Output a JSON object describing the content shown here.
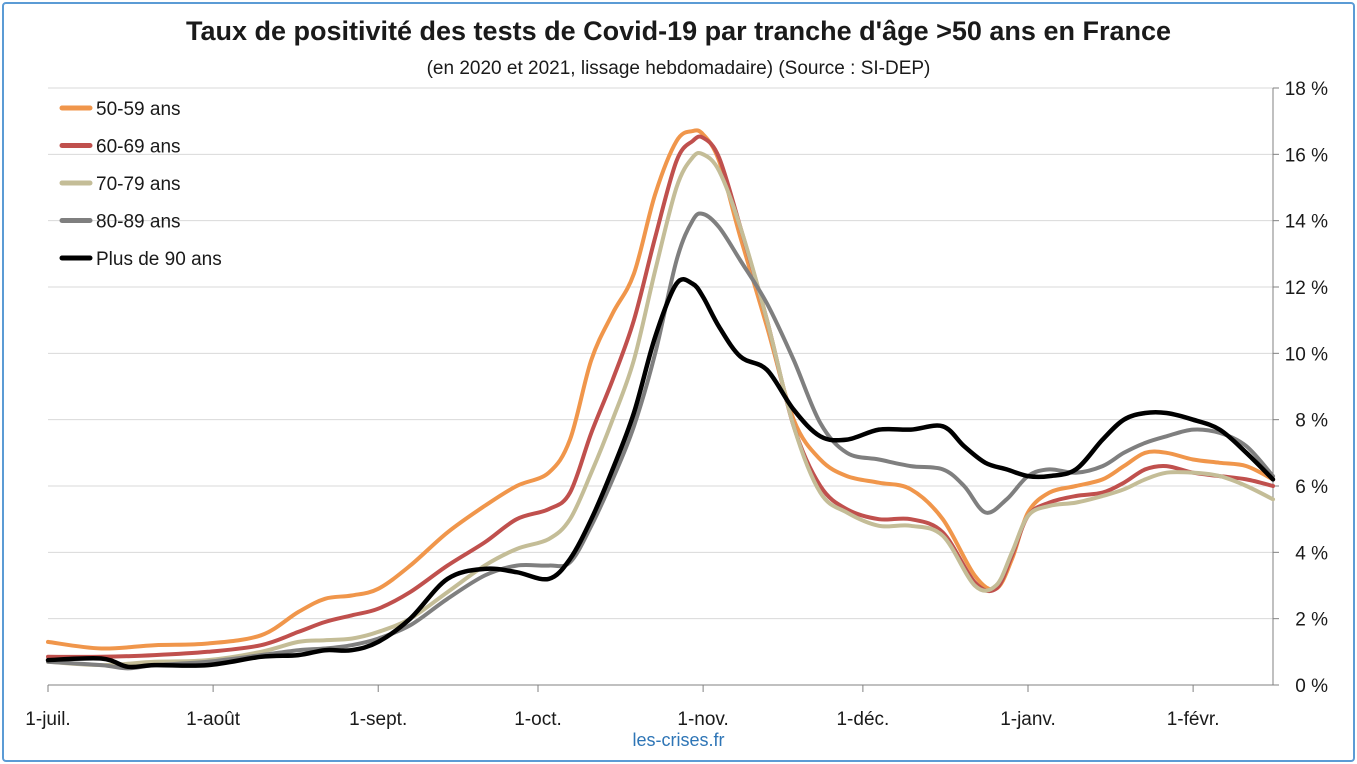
{
  "chart_data": {
    "type": "line",
    "title": "Taux de positivité des tests de Covid-19 par tranche d'âge >50 ans en France",
    "subtitle": "(en 2020 et 2021, lissage hebdomadaire) (Source : SI-DEP)",
    "source_note": "les-crises.fr",
    "xlabel": "",
    "ylabel": "",
    "ylim": [
      0,
      18
    ],
    "y_ticks": [
      0,
      2,
      4,
      6,
      8,
      10,
      12,
      14,
      16,
      18
    ],
    "y_tick_labels": [
      "0 %",
      "2 %",
      "4 %",
      "6 %",
      "8 %",
      "10 %",
      "12 %",
      "14 %",
      "16 %",
      "18 %"
    ],
    "y_axis_side": "right",
    "xlim": [
      0,
      230
    ],
    "x_unit": "days since 1-juil.",
    "x_ticks": [
      0,
      31,
      62,
      92,
      123,
      153,
      184,
      215
    ],
    "x_tick_labels": [
      "1-juil.",
      "1-août",
      "1-sept.",
      "1-oct.",
      "1-nov.",
      "1-déc.",
      "1-janv.",
      "1-févr."
    ],
    "grid": "horizontal",
    "legend_position": "top-left",
    "series": [
      {
        "name": "50-59 ans",
        "color": "#f0964b",
        "x": [
          0,
          10,
          20,
          30,
          40,
          47,
          52,
          57,
          62,
          68,
          75,
          82,
          88,
          94,
          98,
          102,
          106,
          110,
          114,
          118,
          121,
          123,
          126,
          130,
          135,
          140,
          145,
          150,
          156,
          162,
          168,
          174,
          178,
          181,
          184,
          188,
          193,
          198,
          202,
          206,
          210,
          215,
          220,
          225,
          230
        ],
        "y": [
          1.3,
          1.1,
          1.2,
          1.25,
          1.5,
          2.2,
          2.6,
          2.7,
          2.9,
          3.6,
          4.6,
          5.4,
          6.0,
          6.4,
          7.4,
          9.8,
          11.2,
          12.4,
          14.8,
          16.4,
          16.7,
          16.6,
          15.8,
          13.5,
          10.8,
          8.0,
          6.8,
          6.3,
          6.1,
          5.9,
          5.0,
          3.3,
          2.9,
          3.8,
          5.2,
          5.8,
          6.0,
          6.2,
          6.6,
          7.0,
          7.0,
          6.8,
          6.7,
          6.6,
          6.2
        ]
      },
      {
        "name": "60-69 ans",
        "color": "#c0504d",
        "x": [
          0,
          10,
          20,
          30,
          40,
          47,
          52,
          57,
          62,
          68,
          75,
          82,
          88,
          94,
          98,
          102,
          106,
          110,
          114,
          118,
          121,
          123,
          126,
          130,
          135,
          140,
          145,
          150,
          156,
          162,
          168,
          174,
          178,
          181,
          184,
          188,
          193,
          198,
          202,
          206,
          210,
          215,
          220,
          225,
          230
        ],
        "y": [
          0.85,
          0.85,
          0.9,
          1.0,
          1.2,
          1.6,
          1.9,
          2.1,
          2.3,
          2.8,
          3.6,
          4.3,
          5.0,
          5.3,
          5.8,
          7.6,
          9.2,
          11.0,
          13.5,
          15.8,
          16.4,
          16.5,
          15.9,
          13.8,
          11.0,
          7.8,
          6.0,
          5.3,
          5.0,
          5.0,
          4.6,
          3.1,
          2.9,
          3.9,
          5.1,
          5.5,
          5.7,
          5.8,
          6.1,
          6.5,
          6.6,
          6.4,
          6.3,
          6.2,
          6.0
        ]
      },
      {
        "name": "70-79 ans",
        "color": "#c4bd97",
        "x": [
          0,
          10,
          20,
          30,
          40,
          47,
          52,
          57,
          62,
          68,
          75,
          82,
          88,
          94,
          98,
          102,
          106,
          110,
          114,
          118,
          121,
          123,
          126,
          130,
          135,
          140,
          145,
          150,
          156,
          162,
          168,
          174,
          178,
          181,
          184,
          188,
          193,
          198,
          202,
          206,
          210,
          215,
          220,
          225,
          230
        ],
        "y": [
          0.7,
          0.6,
          0.7,
          0.75,
          1.0,
          1.3,
          1.35,
          1.4,
          1.6,
          2.0,
          2.8,
          3.6,
          4.1,
          4.4,
          5.0,
          6.4,
          8.0,
          9.8,
          12.5,
          15.0,
          15.9,
          16.0,
          15.5,
          13.8,
          11.0,
          7.8,
          5.8,
          5.2,
          4.8,
          4.8,
          4.5,
          3.0,
          3.0,
          4.0,
          5.1,
          5.4,
          5.5,
          5.7,
          5.9,
          6.2,
          6.4,
          6.4,
          6.3,
          6.0,
          5.6
        ]
      },
      {
        "name": "80-89 ans",
        "color": "#7f7f7f",
        "x": [
          0,
          10,
          15,
          20,
          30,
          40,
          47,
          52,
          57,
          62,
          68,
          75,
          82,
          88,
          94,
          98,
          102,
          106,
          110,
          114,
          118,
          121,
          123,
          126,
          130,
          135,
          140,
          145,
          150,
          156,
          162,
          168,
          172,
          176,
          180,
          184,
          188,
          193,
          198,
          202,
          206,
          210,
          215,
          220,
          225,
          230
        ],
        "y": [
          0.7,
          0.6,
          0.5,
          0.6,
          0.7,
          0.9,
          1.05,
          1.1,
          1.2,
          1.4,
          1.8,
          2.6,
          3.3,
          3.6,
          3.6,
          3.7,
          4.8,
          6.2,
          7.8,
          10.0,
          12.8,
          14.0,
          14.2,
          13.8,
          12.8,
          11.5,
          9.8,
          7.9,
          7.0,
          6.8,
          6.6,
          6.5,
          6.0,
          5.2,
          5.6,
          6.3,
          6.5,
          6.4,
          6.6,
          7.0,
          7.3,
          7.5,
          7.7,
          7.6,
          7.2,
          6.3
        ]
      },
      {
        "name": "Plus de 90 ans",
        "color": "#000000",
        "x": [
          0,
          10,
          15,
          20,
          30,
          40,
          47,
          52,
          57,
          62,
          68,
          75,
          82,
          88,
          94,
          98,
          102,
          106,
          110,
          114,
          118,
          121,
          123,
          126,
          130,
          135,
          140,
          145,
          150,
          156,
          162,
          168,
          172,
          176,
          180,
          184,
          188,
          193,
          198,
          202,
          206,
          210,
          215,
          220,
          225,
          230
        ],
        "y": [
          0.75,
          0.8,
          0.55,
          0.6,
          0.6,
          0.85,
          0.9,
          1.05,
          1.05,
          1.3,
          2.0,
          3.2,
          3.5,
          3.4,
          3.2,
          3.8,
          5.0,
          6.5,
          8.2,
          10.5,
          12.1,
          12.1,
          11.7,
          10.8,
          9.9,
          9.5,
          8.3,
          7.5,
          7.4,
          7.7,
          7.7,
          7.8,
          7.2,
          6.7,
          6.5,
          6.3,
          6.3,
          6.5,
          7.4,
          8.0,
          8.2,
          8.2,
          8.0,
          7.7,
          7.0,
          6.2
        ]
      }
    ]
  }
}
